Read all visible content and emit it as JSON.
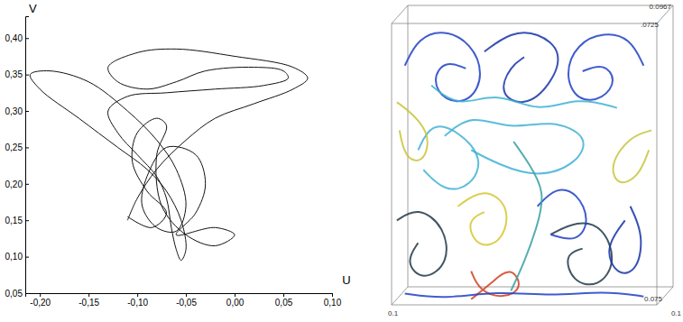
{
  "chart_data": [
    {
      "type": "line",
      "x_label": "U",
      "y_label": "V",
      "color": "#111111",
      "xlim": [
        -0.215,
        0.1
      ],
      "ylim": [
        0.05,
        0.43
      ],
      "xticks": [
        {
          "value": -0.2,
          "label": "-0,20"
        },
        {
          "value": -0.15,
          "label": "-0,15"
        },
        {
          "value": -0.1,
          "label": "-0,10"
        },
        {
          "value": -0.05,
          "label": "-0,05"
        },
        {
          "value": 0,
          "label": "0,00"
        },
        {
          "value": 0.05,
          "label": "0,05"
        },
        {
          "value": 0.1,
          "label": "0,10"
        }
      ],
      "yticks": [
        {
          "value": 0.05,
          "label": "0,05"
        },
        {
          "value": 0.1,
          "label": "0,10"
        },
        {
          "value": 0.15,
          "label": "0,15"
        },
        {
          "value": 0.2,
          "label": "0,20"
        },
        {
          "value": 0.25,
          "label": "0,25"
        },
        {
          "value": 0.3,
          "label": "0,30"
        },
        {
          "value": 0.35,
          "label": "0,35"
        },
        {
          "value": 0.4,
          "label": "0,40"
        }
      ],
      "x": [
        -0.11,
        -0.1,
        -0.08,
        -0.05,
        -0.02,
        0.02,
        0.06,
        0.075,
        0.06,
        0.0,
        -0.06,
        -0.1,
        -0.13,
        -0.12,
        -0.09,
        -0.06,
        -0.03,
        0.02,
        0.05,
        0.055,
        0.03,
        -0.02,
        -0.07,
        -0.11,
        -0.13,
        -0.12,
        -0.1,
        -0.08,
        -0.07,
        -0.065,
        -0.06,
        -0.055,
        -0.05,
        -0.055,
        -0.07,
        -0.09,
        -0.12,
        -0.16,
        -0.2,
        -0.21,
        -0.19,
        -0.15,
        -0.11,
        -0.08,
        -0.06,
        -0.05,
        -0.06,
        -0.08,
        -0.095,
        -0.09,
        -0.07,
        -0.04,
        -0.03,
        -0.04,
        -0.06,
        -0.02,
        0.0,
        -0.02,
        -0.05,
        -0.075,
        -0.08,
        -0.07,
        -0.08,
        -0.1,
        -0.105,
        -0.09,
        -0.07,
        -0.085,
        -0.11
      ],
      "values": [
        0.15,
        0.18,
        0.22,
        0.26,
        0.29,
        0.31,
        0.33,
        0.345,
        0.36,
        0.375,
        0.385,
        0.38,
        0.36,
        0.34,
        0.33,
        0.34,
        0.355,
        0.36,
        0.355,
        0.345,
        0.335,
        0.33,
        0.325,
        0.32,
        0.3,
        0.27,
        0.24,
        0.21,
        0.18,
        0.14,
        0.11,
        0.095,
        0.11,
        0.15,
        0.19,
        0.22,
        0.25,
        0.29,
        0.33,
        0.35,
        0.355,
        0.34,
        0.3,
        0.26,
        0.22,
        0.17,
        0.135,
        0.14,
        0.17,
        0.21,
        0.25,
        0.24,
        0.2,
        0.16,
        0.13,
        0.14,
        0.13,
        0.115,
        0.13,
        0.17,
        0.24,
        0.28,
        0.29,
        0.27,
        0.23,
        0.19,
        0.16,
        0.14,
        0.155
      ]
    },
    {
      "type": "streamlines",
      "xlim": [
        0,
        1
      ],
      "ylim": [
        0,
        1
      ],
      "tick_labels": false,
      "annotations": [
        "0.0967",
        ".0725",
        "0.1",
        "0.075",
        "0.1"
      ],
      "series": [
        {
          "color": "#1f3fc4",
          "x": [
            0.05,
            0.1,
            0.2,
            0.3,
            0.35,
            0.3,
            0.2,
            0.15,
            0.2,
            0.28
          ],
          "values": [
            0.85,
            0.95,
            0.98,
            0.93,
            0.82,
            0.72,
            0.72,
            0.8,
            0.87,
            0.84
          ]
        },
        {
          "color": "#1f3fc4",
          "x": [
            0.95,
            0.9,
            0.8,
            0.7,
            0.65,
            0.7,
            0.8,
            0.85,
            0.8,
            0.72
          ],
          "values": [
            0.85,
            0.95,
            0.97,
            0.93,
            0.82,
            0.72,
            0.73,
            0.8,
            0.86,
            0.83
          ]
        },
        {
          "color": "#1533a8",
          "x": [
            0.35,
            0.45,
            0.55,
            0.65,
            0.6,
            0.5,
            0.4,
            0.45,
            0.5
          ],
          "values": [
            0.9,
            0.97,
            0.97,
            0.9,
            0.78,
            0.7,
            0.75,
            0.85,
            0.88
          ]
        },
        {
          "color": "#3fb2d4",
          "x": [
            0.2,
            0.3,
            0.45,
            0.6,
            0.75,
            0.7,
            0.55,
            0.4,
            0.3
          ],
          "values": [
            0.6,
            0.68,
            0.62,
            0.66,
            0.6,
            0.5,
            0.45,
            0.5,
            0.55
          ]
        },
        {
          "color": "#3fb2d4",
          "x": [
            0.1,
            0.15,
            0.25,
            0.35,
            0.3,
            0.2,
            0.12
          ],
          "values": [
            0.55,
            0.65,
            0.62,
            0.52,
            0.42,
            0.4,
            0.48
          ]
        },
        {
          "color": "#c9c43c",
          "x": [
            0.02,
            0.08,
            0.15,
            0.12,
            0.05,
            0.03
          ],
          "values": [
            0.72,
            0.68,
            0.6,
            0.5,
            0.52,
            0.62
          ]
        },
        {
          "color": "#c9c43c",
          "x": [
            0.98,
            0.9,
            0.82,
            0.85,
            0.93,
            0.97
          ],
          "values": [
            0.62,
            0.6,
            0.5,
            0.42,
            0.45,
            0.55
          ]
        },
        {
          "color": "#d6c630",
          "x": [
            0.25,
            0.35,
            0.45,
            0.42,
            0.32,
            0.28,
            0.35
          ],
          "values": [
            0.35,
            0.42,
            0.35,
            0.22,
            0.2,
            0.3,
            0.33
          ]
        },
        {
          "color": "#d4401e",
          "x": [
            0.3,
            0.38,
            0.45,
            0.5,
            0.42,
            0.33,
            0.3
          ],
          "values": [
            0.02,
            0.08,
            0.14,
            0.06,
            0.02,
            0.05,
            0.12
          ]
        },
        {
          "color": "#203848",
          "x": [
            0.02,
            0.1,
            0.2,
            0.22,
            0.12,
            0.05,
            0.1
          ],
          "values": [
            0.3,
            0.35,
            0.28,
            0.15,
            0.08,
            0.15,
            0.22
          ]
        },
        {
          "color": "#203848",
          "x": [
            0.6,
            0.7,
            0.8,
            0.85,
            0.78,
            0.68,
            0.65,
            0.72
          ],
          "values": [
            0.25,
            0.3,
            0.28,
            0.15,
            0.06,
            0.08,
            0.18,
            0.2
          ]
        },
        {
          "color": "#1f3fc4",
          "x": [
            0.55,
            0.62,
            0.7,
            0.75,
            0.7,
            0.6
          ],
          "values": [
            0.35,
            0.42,
            0.4,
            0.3,
            0.22,
            0.25
          ]
        },
        {
          "color": "#3aa0a0",
          "x": [
            0.45,
            0.5,
            0.55,
            0.58,
            0.52,
            0.46
          ],
          "values": [
            0.05,
            0.15,
            0.28,
            0.4,
            0.5,
            0.58
          ]
        },
        {
          "color": "#1f3fc4",
          "x": [
            0.05,
            0.2,
            0.4,
            0.6,
            0.8,
            0.95
          ],
          "values": [
            0.04,
            0.02,
            0.05,
            0.03,
            0.05,
            0.03
          ]
        },
        {
          "color": "#3fb2d4",
          "x": [
            0.15,
            0.25,
            0.4,
            0.55,
            0.7,
            0.85
          ],
          "values": [
            0.78,
            0.7,
            0.76,
            0.68,
            0.74,
            0.7
          ]
        },
        {
          "color": "#1533a8",
          "x": [
            0.9,
            0.95,
            0.93,
            0.85,
            0.8,
            0.88
          ],
          "values": [
            0.35,
            0.25,
            0.12,
            0.1,
            0.2,
            0.3
          ]
        }
      ]
    }
  ]
}
